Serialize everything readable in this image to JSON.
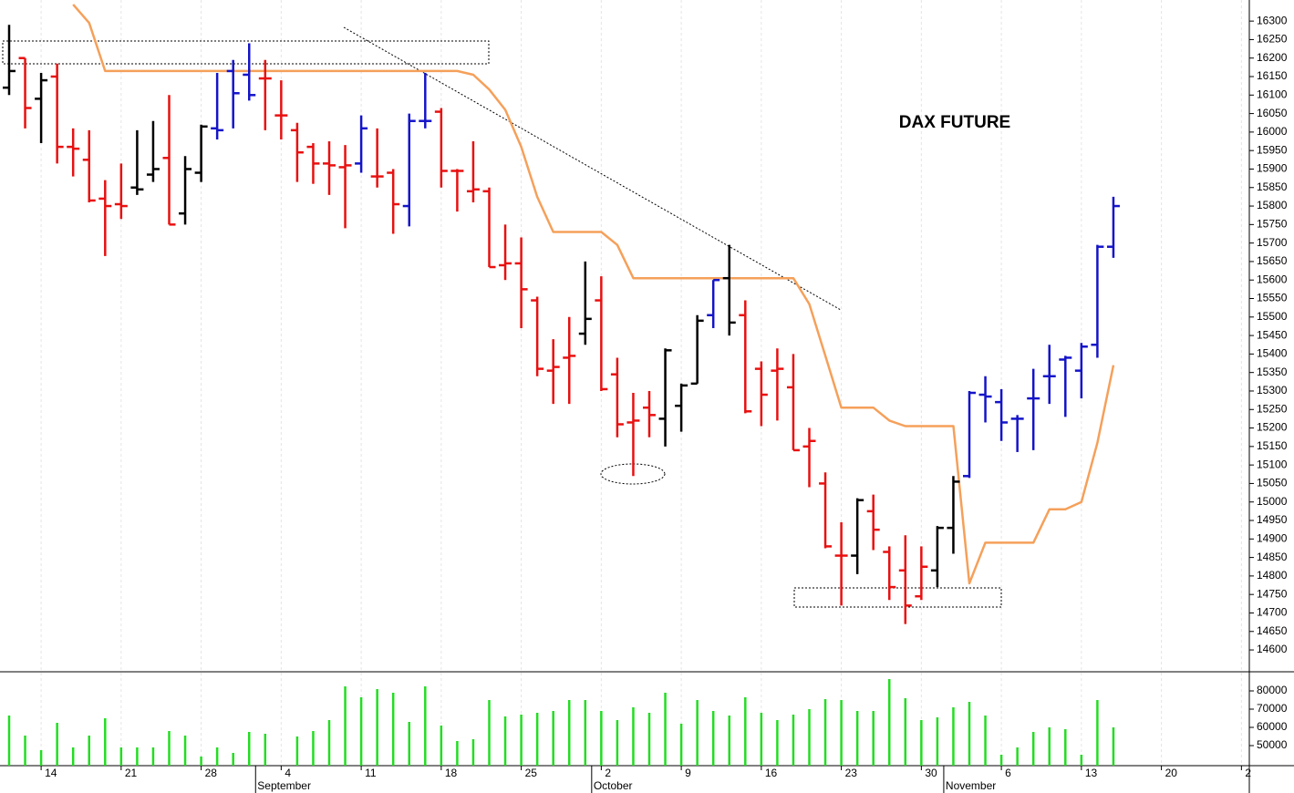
{
  "chart_data": {
    "type": "ohlc",
    "title": "DAX FUTURE",
    "categories": [
      null,
      null,
      "14",
      null,
      null,
      null,
      null,
      "21",
      null,
      null,
      null,
      null,
      "28",
      null,
      null,
      null,
      null,
      "4",
      null,
      null,
      null,
      null,
      "11",
      null,
      null,
      null,
      null,
      "18",
      null,
      null,
      null,
      null,
      "25",
      null,
      null,
      null,
      null,
      "2",
      null,
      null,
      null,
      null,
      "9",
      null,
      null,
      null,
      null,
      "16",
      null,
      null,
      null,
      null,
      "23",
      null,
      null,
      null,
      null,
      "30",
      null,
      null,
      null,
      null,
      "6",
      null,
      null,
      null,
      null,
      "13",
      null,
      null,
      null,
      null,
      "20",
      null,
      null,
      null,
      null,
      "2"
    ],
    "months": [
      null,
      null,
      null,
      null,
      null,
      null,
      null,
      null,
      null,
      null,
      null,
      null,
      null,
      null,
      null,
      null,
      "September",
      null,
      null,
      null,
      null,
      null,
      null,
      null,
      null,
      null,
      null,
      null,
      null,
      null,
      null,
      null,
      null,
      null,
      null,
      null,
      null,
      "October",
      null,
      null,
      null,
      null,
      null,
      null,
      null,
      null,
      null,
      null,
      null,
      null,
      null,
      null,
      null,
      null,
      null,
      null,
      null,
      null,
      null,
      "November",
      null,
      null,
      null,
      null,
      null,
      null,
      null,
      null,
      null,
      null,
      null,
      null,
      null,
      null,
      null,
      null,
      null,
      null
    ],
    "open": [
      16120,
      16200,
      16090,
      16150,
      15960,
      15925,
      15820,
      15805,
      15850,
      15885,
      15930,
      15780,
      15890,
      16010,
      16165,
      16155,
      16145,
      16045,
      16005,
      15960,
      15915,
      15905,
      15915,
      15880,
      15890,
      15800,
      16030,
      16055,
      15895,
      15840,
      15840,
      15640,
      15645,
      15545,
      15355,
      15390,
      15455,
      15545,
      15345,
      15215,
      15255,
      15225,
      15260,
      15320,
      15505,
      15605,
      15505,
      15360,
      15355,
      15310,
      15150,
      15050,
      14855,
      14855,
      14975,
      14865,
      14815,
      14745,
      14815,
      14930,
      15070,
      15290,
      15270,
      15225,
      15280,
      15340,
      15385,
      15355,
      15425,
      15690,
      null,
      null,
      null,
      null,
      null,
      null,
      null,
      null
    ],
    "high": [
      16290,
      16200,
      16160,
      16185,
      16010,
      16005,
      15870,
      15915,
      16005,
      16030,
      16100,
      15935,
      16020,
      16160,
      16195,
      16240,
      16195,
      16140,
      16025,
      15970,
      15975,
      15965,
      16045,
      16010,
      15900,
      16050,
      16160,
      16065,
      15900,
      15975,
      15850,
      15750,
      15715,
      15555,
      15440,
      15500,
      15650,
      15610,
      15390,
      15295,
      15300,
      15415,
      15320,
      15505,
      15600,
      15695,
      15545,
      15380,
      15415,
      15400,
      15200,
      15080,
      14945,
      15010,
      15020,
      14880,
      14910,
      14880,
      14935,
      15070,
      15300,
      15340,
      15305,
      15235,
      15360,
      15425,
      15395,
      15430,
      15695,
      15825,
      null,
      null,
      null,
      null,
      null,
      null,
      null,
      null
    ],
    "low": [
      16100,
      16010,
      15970,
      15915,
      15880,
      15810,
      15665,
      15765,
      15830,
      15865,
      15750,
      15750,
      15865,
      15980,
      16010,
      16085,
      16005,
      15980,
      15865,
      15860,
      15830,
      15740,
      15890,
      15850,
      15725,
      15745,
      16010,
      15850,
      15785,
      15810,
      15635,
      15600,
      15470,
      15340,
      15265,
      15265,
      15425,
      15300,
      15175,
      15070,
      15175,
      15150,
      15190,
      15320,
      15470,
      15450,
      15240,
      15205,
      15220,
      15140,
      15040,
      14875,
      14720,
      14805,
      14870,
      14735,
      14670,
      14735,
      14770,
      14860,
      15065,
      15215,
      15165,
      15135,
      15140,
      15265,
      15230,
      15280,
      15390,
      15660,
      null,
      null,
      null,
      null,
      null,
      null,
      null,
      null
    ],
    "close": [
      16165,
      16065,
      16140,
      15960,
      15955,
      15815,
      15800,
      15800,
      15845,
      15900,
      15750,
      15900,
      16015,
      16005,
      16105,
      16100,
      16145,
      16045,
      15945,
      15915,
      15910,
      15910,
      16010,
      15880,
      15805,
      16030,
      16030,
      15895,
      15895,
      15845,
      15635,
      15645,
      15575,
      15360,
      15365,
      15395,
      15495,
      15305,
      15210,
      15220,
      15235,
      15410,
      15315,
      15490,
      15600,
      15485,
      15245,
      15290,
      15360,
      15140,
      15165,
      14880,
      14855,
      15005,
      14925,
      14770,
      14720,
      14825,
      14930,
      15055,
      15295,
      15285,
      15215,
      15225,
      15280,
      15340,
      15390,
      15420,
      15690,
      15800,
      null,
      null,
      null,
      null,
      null,
      null,
      null,
      null
    ],
    "bar_colors": [
      "#000000",
      "#e81010",
      "#000000",
      "#e81010",
      "#e81010",
      "#e81010",
      "#e81010",
      "#e81010",
      "#000000",
      "#000000",
      "#e81010",
      "#000000",
      "#000000",
      "#1414c8",
      "#1414c8",
      "#1414c8",
      "#e81010",
      "#e81010",
      "#e81010",
      "#e81010",
      "#e81010",
      "#e81010",
      "#1414c8",
      "#e81010",
      "#e81010",
      "#1414c8",
      "#1414c8",
      "#e81010",
      "#e81010",
      "#e81010",
      "#e81010",
      "#e81010",
      "#e81010",
      "#e81010",
      "#e81010",
      "#e81010",
      "#000000",
      "#e81010",
      "#e81010",
      "#e81010",
      "#e81010",
      "#000000",
      "#000000",
      "#000000",
      "#1414c8",
      "#000000",
      "#e81010",
      "#e81010",
      "#e81010",
      "#e81010",
      "#e81010",
      "#e81010",
      "#e81010",
      "#000000",
      "#e81010",
      "#e81010",
      "#e81010",
      "#e81010",
      "#000000",
      "#000000",
      "#1414c8",
      "#1414c8",
      "#1414c8",
      "#1414c8",
      "#1414c8",
      "#1414c8",
      "#1414c8",
      "#1414c8",
      "#1414c8",
      "#1414c8",
      null,
      null,
      null,
      null,
      null,
      null,
      null,
      null
    ],
    "line": {
      "color": "#f5a05a",
      "values": [
        null,
        null,
        null,
        null,
        16345,
        16295,
        16165,
        16165,
        16165,
        16165,
        16165,
        16165,
        16165,
        16165,
        16165,
        16165,
        16165,
        16165,
        16165,
        16165,
        16165,
        16165,
        16165,
        16165,
        16165,
        16165,
        16165,
        16165,
        16165,
        16155,
        16115,
        16060,
        15960,
        15825,
        15730,
        15730,
        15730,
        15730,
        15695,
        15605,
        15605,
        15605,
        15605,
        15605,
        15605,
        15605,
        15605,
        15605,
        15605,
        15605,
        15535,
        15395,
        15255,
        15255,
        15255,
        15220,
        15205,
        15205,
        15205,
        15205,
        14780,
        14890,
        14890,
        14890,
        14890,
        14980,
        14980,
        15000,
        15160,
        15370,
        null,
        null,
        null,
        null,
        null,
        null,
        null,
        null
      ]
    },
    "ylim": [
      14541,
      16357
    ],
    "yticks": [
      14600,
      14650,
      14700,
      14750,
      14800,
      14850,
      14900,
      14950,
      15000,
      15050,
      15100,
      15150,
      15200,
      15250,
      15300,
      15350,
      15400,
      15450,
      15500,
      15550,
      15600,
      15650,
      15700,
      15750,
      15800,
      15850,
      15900,
      15950,
      16000,
      16050,
      16100,
      16150,
      16200,
      16250,
      16300
    ],
    "volume": {
      "color": "#22dd22",
      "values": [
        66500,
        55500,
        47500,
        62500,
        49000,
        55500,
        65000,
        49000,
        49000,
        49000,
        58000,
        55500,
        44000,
        49000,
        46000,
        57500,
        56500,
        null,
        55000,
        58000,
        64000,
        82500,
        76500,
        81000,
        79000,
        63000,
        82500,
        61000,
        52500,
        53500,
        75000,
        66000,
        67000,
        68000,
        69000,
        75000,
        75000,
        69000,
        64000,
        71000,
        68000,
        79000,
        62000,
        75000,
        69000,
        66500,
        76500,
        68000,
        64000,
        67000,
        70000,
        75500,
        75000,
        69000,
        69000,
        86500,
        76000,
        64000,
        65500,
        71000,
        74000,
        66500,
        45000,
        49000,
        57500,
        60000,
        59000,
        45000,
        75000,
        60000,
        null,
        null,
        null,
        null,
        null,
        null,
        null,
        null
      ],
      "ylim": [
        39000,
        90500
      ],
      "yticks": [
        50000,
        60000,
        70000,
        80000
      ]
    }
  }
}
